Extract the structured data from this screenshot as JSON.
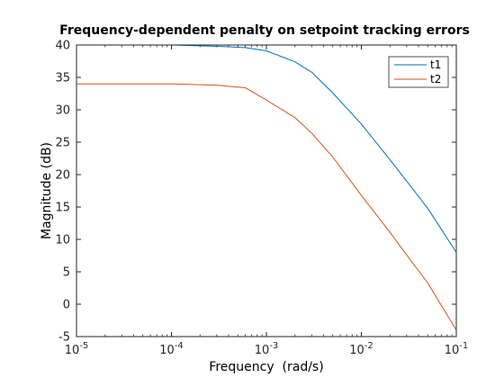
{
  "chart_data": {
    "type": "line",
    "title": "Frequency-dependent penalty on setpoint tracking errors",
    "xlabel": "Frequency  (rad/s)",
    "ylabel": "Magnitude (dB)",
    "xscale": "log",
    "xlim": [
      1e-05,
      0.1
    ],
    "ylim": [
      -5,
      40
    ],
    "x_ticks": [
      {
        "value": 1e-05,
        "base": "10",
        "exp": "-5"
      },
      {
        "value": 0.0001,
        "base": "10",
        "exp": "-4"
      },
      {
        "value": 0.001,
        "base": "10",
        "exp": "-3"
      },
      {
        "value": 0.01,
        "base": "10",
        "exp": "-2"
      },
      {
        "value": 0.1,
        "base": "10",
        "exp": "-1"
      }
    ],
    "y_ticks": [
      -5,
      0,
      5,
      10,
      15,
      20,
      25,
      30,
      35,
      40
    ],
    "grid": false,
    "legend_position": "top-right",
    "x": [
      1e-05,
      0.0001,
      0.0003,
      0.0006,
      0.001,
      0.002,
      0.003,
      0.005,
      0.01,
      0.02,
      0.03,
      0.05,
      0.1
    ],
    "series": [
      {
        "name": "t1",
        "color": "#0072BD",
        "values": [
          40.0,
          40.0,
          39.8,
          39.6,
          39.1,
          37.4,
          35.8,
          32.6,
          27.8,
          22.3,
          19.0,
          14.8,
          8.0
        ]
      },
      {
        "name": "t2",
        "color": "#D95319",
        "values": [
          34.0,
          34.0,
          33.8,
          33.4,
          31.5,
          28.8,
          26.4,
          22.7,
          16.8,
          11.1,
          7.6,
          3.3,
          -4.0
        ]
      }
    ]
  }
}
